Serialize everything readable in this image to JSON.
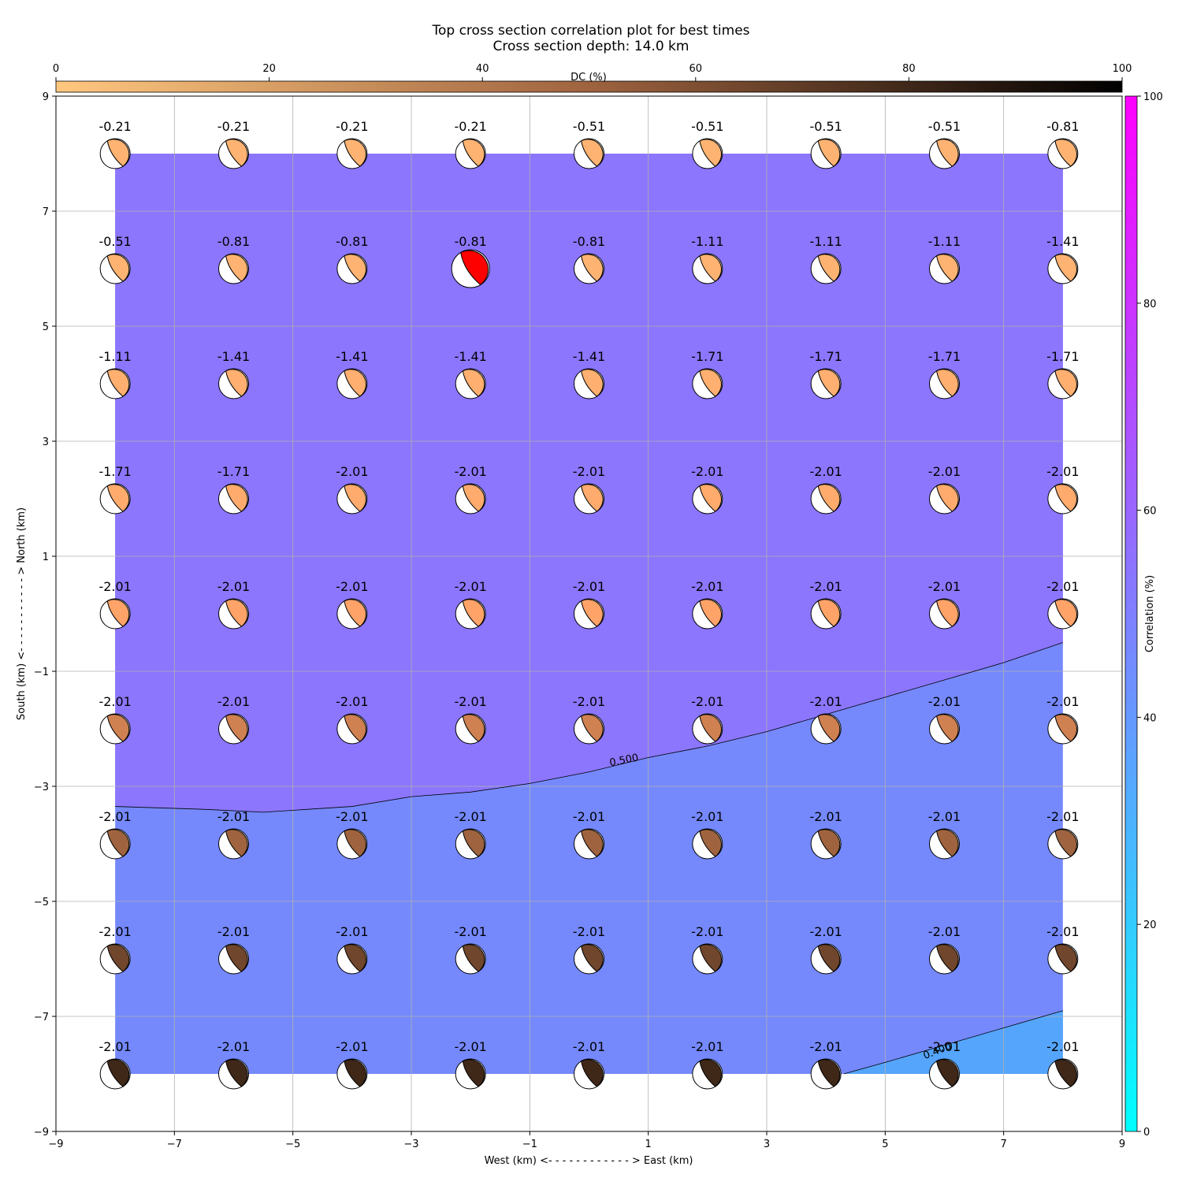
{
  "chart_data": {
    "type": "heatmap",
    "title_line1": "Top cross section correlation plot for best times",
    "title_line2": "Cross section depth: 14.0 km",
    "xlabel": "West (km) <- - - - - - - - - - - - > East (km)",
    "ylabel": "South (km) <- - - - - - - - - - - > North (km)",
    "xlim": [
      -9,
      9
    ],
    "ylim": [
      -9,
      9
    ],
    "x_ticks": [
      "−9",
      "−7",
      "−5",
      "−3",
      "−1",
      "1",
      "3",
      "5",
      "7",
      "9"
    ],
    "y_ticks": [
      "−9",
      "−7",
      "−5",
      "−3",
      "−1",
      "1",
      "3",
      "5",
      "7",
      "9"
    ],
    "grid": true,
    "grid_x": [
      -8,
      -6,
      -4,
      -2,
      0,
      2,
      4,
      6,
      8
    ],
    "grid_y": [
      8,
      6,
      4,
      2,
      0,
      -2,
      -4,
      -6,
      -8
    ],
    "time_labels": [
      [
        "-0.21",
        "-0.21",
        "-0.21",
        "-0.21",
        "-0.51",
        "-0.51",
        "-0.51",
        "-0.51",
        "-0.81"
      ],
      [
        "-0.51",
        "-0.81",
        "-0.81",
        "-0.81",
        "-0.81",
        "-1.11",
        "-1.11",
        "-1.11",
        "-1.41"
      ],
      [
        "-1.11",
        "-1.41",
        "-1.41",
        "-1.41",
        "-1.41",
        "-1.71",
        "-1.71",
        "-1.71",
        "-1.71"
      ],
      [
        "-1.71",
        "-1.71",
        "-2.01",
        "-2.01",
        "-2.01",
        "-2.01",
        "-2.01",
        "-2.01",
        "-2.01"
      ],
      [
        "-2.01",
        "-2.01",
        "-2.01",
        "-2.01",
        "-2.01",
        "-2.01",
        "-2.01",
        "-2.01",
        "-2.01"
      ],
      [
        "-2.01",
        "-2.01",
        "-2.01",
        "-2.01",
        "-2.01",
        "-2.01",
        "-2.01",
        "-2.01",
        "-2.01"
      ],
      [
        "-2.01",
        "-2.01",
        "-2.01",
        "-2.01",
        "-2.01",
        "-2.01",
        "-2.01",
        "-2.01",
        "-2.01"
      ],
      [
        "-2.01",
        "-2.01",
        "-2.01",
        "-2.01",
        "-2.01",
        "-2.01",
        "-2.01",
        "-2.01",
        "-2.01"
      ],
      [
        "-2.01",
        "-2.01",
        "-2.01",
        "-2.01",
        "-2.01",
        "-2.01",
        "-2.01",
        "-2.01",
        "-2.01"
      ]
    ],
    "dc_percent_by_row": [
      10,
      10,
      12,
      14,
      18,
      35,
      50,
      65,
      80
    ],
    "best_solution": {
      "x": -2,
      "y": 6,
      "color": "#ff0000"
    },
    "regions": [
      {
        "name": "correlation 0.5–0.6",
        "color": "#8b76fd"
      },
      {
        "name": "correlation 0.4–0.5",
        "color": "#7589fd"
      },
      {
        "name": "correlation 0.3–0.4",
        "color": "#55a5fc"
      }
    ],
    "contours": [
      {
        "label": "0.500",
        "points": [
          [
            -8,
            -3.35
          ],
          [
            -6.5,
            -3.4
          ],
          [
            -5.5,
            -3.45
          ],
          [
            -4,
            -3.35
          ],
          [
            -3,
            -3.18
          ],
          [
            -2,
            -3.1
          ],
          [
            -1,
            -2.95
          ],
          [
            0,
            -2.75
          ],
          [
            1,
            -2.5
          ],
          [
            2,
            -2.3
          ],
          [
            3,
            -2.05
          ],
          [
            4,
            -1.75
          ],
          [
            5,
            -1.45
          ],
          [
            6,
            -1.15
          ],
          [
            7,
            -0.85
          ],
          [
            8,
            -0.5
          ]
        ],
        "label_at": [
          0.6,
          -2.6
        ]
      },
      {
        "label": "0.400",
        "points": [
          [
            4.3,
            -8
          ],
          [
            5,
            -7.8
          ],
          [
            6,
            -7.5
          ],
          [
            7,
            -7.2
          ],
          [
            8,
            -6.9
          ]
        ],
        "label_at": [
          5.9,
          -7.65
        ]
      }
    ],
    "colorbar_correlation": {
      "label": "Correlation (%)",
      "ticks": [
        "0",
        "20",
        "40",
        "60",
        "80",
        "100"
      ],
      "range": [
        0,
        100
      ],
      "colormap": "cool"
    },
    "colorbar_dc": {
      "label": "DC (%)",
      "ticks": [
        "0",
        "20",
        "40",
        "60",
        "80",
        "100"
      ],
      "range": [
        0,
        100
      ],
      "colormap": "copper_r"
    }
  }
}
